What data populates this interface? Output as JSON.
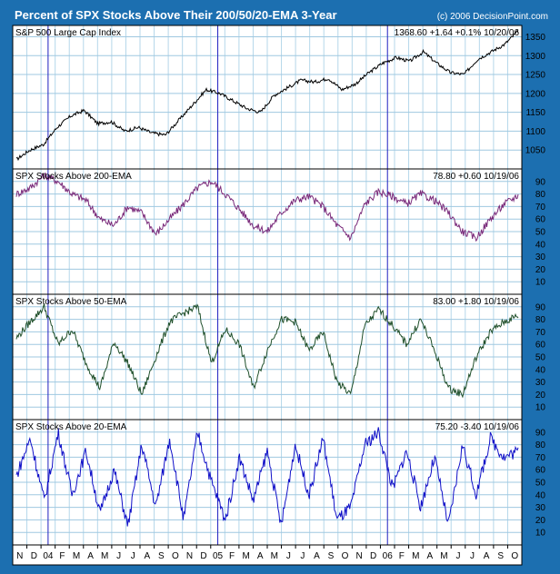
{
  "header": {
    "title": "Percent of SPX Stocks Above Their 200/50/20-EMA 3-Year",
    "copyright": "(c) 2006 DecisionPoint.com"
  },
  "colors": {
    "background": "#1c6fb0",
    "panel": "#ffffff",
    "grid": "#9fc8e0",
    "year_marker": "#2020c0",
    "spx_line": "#000000",
    "ema200_line": "#7a2a7a",
    "ema50_line": "#1f4f2a",
    "ema20_line": "#1010c8"
  },
  "x_axis": {
    "months": [
      "N",
      "D",
      "04",
      "F",
      "M",
      "A",
      "M",
      "J",
      "J",
      "A",
      "S",
      "O",
      "N",
      "D",
      "05",
      "F",
      "M",
      "A",
      "M",
      "J",
      "J",
      "A",
      "S",
      "O",
      "N",
      "D",
      "06",
      "F",
      "M",
      "A",
      "M",
      "J",
      "J",
      "A",
      "S",
      "O"
    ]
  },
  "chart_data": [
    {
      "type": "line",
      "panel": "spx",
      "title": "S&P 500 Large Cap Index",
      "readout": "1368.60 +1.64 +0.1% 10/20/06",
      "yticks": [
        1050,
        1100,
        1150,
        1200,
        1250,
        1300,
        1350
      ],
      "ylim": [
        1000,
        1380
      ],
      "series": [
        {
          "color": "#000000",
          "values": [
            1025,
            1050,
            1065,
            1110,
            1140,
            1155,
            1120,
            1125,
            1100,
            1110,
            1095,
            1090,
            1130,
            1170,
            1210,
            1200,
            1180,
            1160,
            1150,
            1195,
            1215,
            1235,
            1230,
            1240,
            1210,
            1225,
            1255,
            1280,
            1295,
            1285,
            1310,
            1280,
            1255,
            1250,
            1290,
            1310,
            1330,
            1365
          ]
        }
      ]
    },
    {
      "type": "line",
      "panel": "ema200",
      "title": "SPX Stocks Above 200-EMA",
      "readout": "78.80 +0.60 10/19/06",
      "yticks": [
        10,
        20,
        30,
        40,
        50,
        60,
        70,
        80,
        90
      ],
      "ylim": [
        0,
        100
      ],
      "series": [
        {
          "color": "#7a2a7a",
          "values": [
            80,
            85,
            95,
            90,
            80,
            75,
            60,
            55,
            70,
            65,
            48,
            60,
            72,
            85,
            90,
            80,
            68,
            55,
            50,
            65,
            75,
            78,
            70,
            55,
            45,
            72,
            82,
            78,
            72,
            80,
            75,
            65,
            50,
            45,
            60,
            72,
            79
          ]
        }
      ]
    },
    {
      "type": "line",
      "panel": "ema50",
      "title": "SPX Stocks Above 50-EMA",
      "readout": "83.00 +1.80 10/19/06",
      "yticks": [
        10,
        20,
        30,
        40,
        50,
        60,
        70,
        80,
        90
      ],
      "ylim": [
        0,
        100
      ],
      "series": [
        {
          "color": "#1f4f2a",
          "values": [
            65,
            78,
            90,
            60,
            72,
            45,
            25,
            62,
            45,
            20,
            50,
            78,
            85,
            90,
            45,
            72,
            60,
            25,
            55,
            80,
            78,
            55,
            70,
            30,
            20,
            75,
            88,
            75,
            60,
            80,
            55,
            25,
            20,
            50,
            70,
            78,
            83
          ]
        }
      ]
    },
    {
      "type": "line",
      "panel": "ema20",
      "title": "SPX Stocks Above 20-EMA",
      "readout": "75.20 -3.40 10/19/06",
      "yticks": [
        10,
        20,
        30,
        40,
        50,
        60,
        70,
        80,
        90
      ],
      "ylim": [
        0,
        100
      ],
      "series": [
        {
          "color": "#1010c8",
          "values": [
            55,
            85,
            35,
            90,
            40,
            75,
            25,
            60,
            15,
            80,
            30,
            85,
            20,
            90,
            50,
            20,
            70,
            35,
            75,
            15,
            80,
            40,
            85,
            20,
            30,
            80,
            90,
            45,
            75,
            30,
            70,
            15,
            80,
            40,
            85,
            70,
            75
          ]
        }
      ]
    }
  ]
}
